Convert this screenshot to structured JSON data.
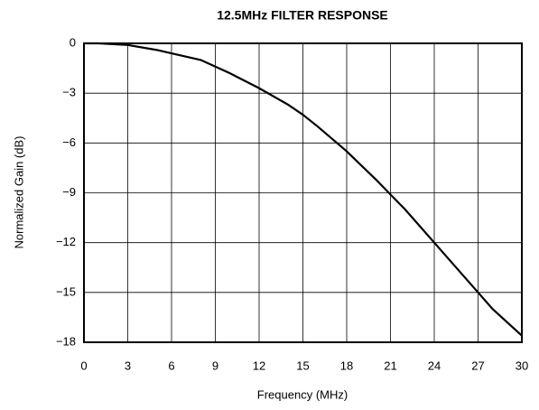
{
  "chart_data": {
    "type": "line",
    "title": "12.5MHz FILTER RESPONSE",
    "x_label": "Frequency (MHz)",
    "y_label": "Normalized Gain (dB)",
    "x": [
      0,
      1,
      3,
      5,
      6,
      8,
      9,
      10,
      12,
      14,
      15,
      16,
      18,
      20,
      21,
      22,
      24,
      26,
      27,
      28,
      30
    ],
    "values": [
      0,
      0,
      -0.1,
      -0.4,
      -0.6,
      -1.0,
      -1.4,
      -1.8,
      -2.7,
      -3.7,
      -4.3,
      -5.0,
      -6.5,
      -8.2,
      -9.1,
      -10.0,
      -12.0,
      -14.0,
      -15.0,
      -16.0,
      -17.6
    ],
    "color": "#000000",
    "xlim": [
      0,
      30
    ],
    "xticks": [
      0,
      3,
      6,
      9,
      12,
      15,
      18,
      21,
      24,
      27,
      30
    ],
    "ylim": [
      -18,
      0
    ],
    "yticks": [
      0,
      {
        "value": -3,
        "label": "−3"
      },
      {
        "value": -6,
        "label": "−6"
      },
      {
        "value": -9,
        "label": "−9"
      },
      {
        "value": -12,
        "label": "−12"
      },
      {
        "value": -15,
        "label": "−15"
      },
      {
        "value": -18,
        "label": "−18"
      }
    ],
    "grid": true
  }
}
